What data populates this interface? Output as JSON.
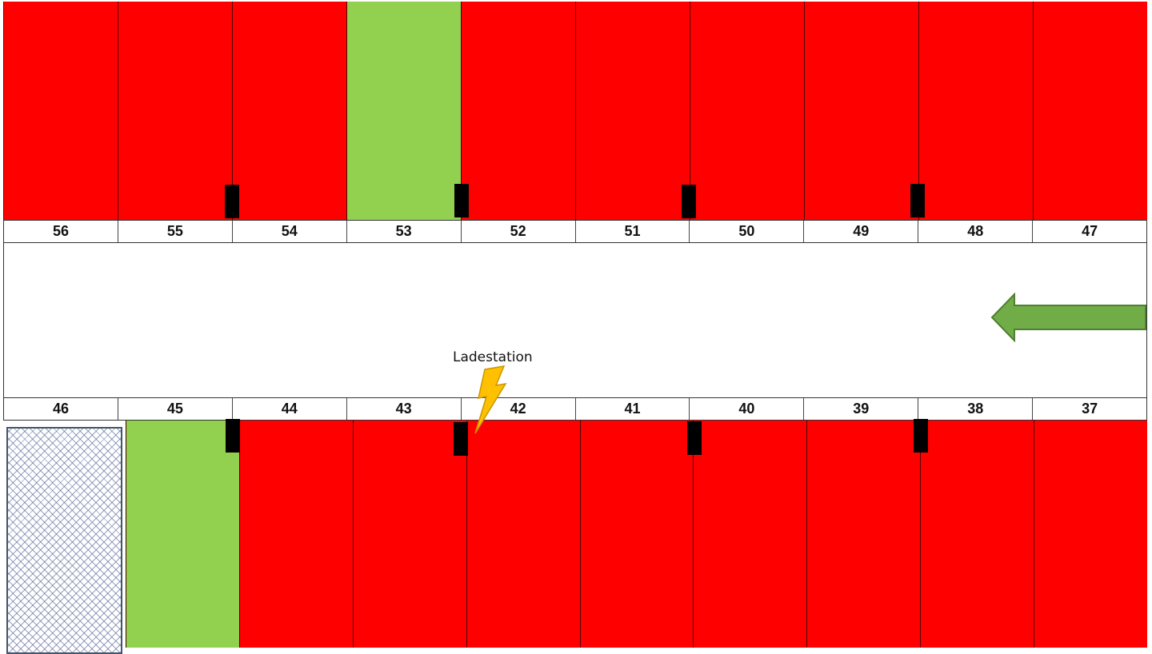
{
  "top_row": [
    {
      "number": "56",
      "status": "occupied"
    },
    {
      "number": "55",
      "status": "occupied"
    },
    {
      "number": "54",
      "status": "occupied"
    },
    {
      "number": "53",
      "status": "free"
    },
    {
      "number": "52",
      "status": "occupied"
    },
    {
      "number": "51",
      "status": "occupied"
    },
    {
      "number": "50",
      "status": "occupied"
    },
    {
      "number": "49",
      "status": "occupied"
    },
    {
      "number": "48",
      "status": "occupied"
    },
    {
      "number": "47",
      "status": "occupied"
    }
  ],
  "bottom_row": [
    {
      "number": "46",
      "status": "blocked"
    },
    {
      "number": "45",
      "status": "free"
    },
    {
      "number": "44",
      "status": "occupied"
    },
    {
      "number": "43",
      "status": "occupied"
    },
    {
      "number": "42",
      "status": "occupied"
    },
    {
      "number": "41",
      "status": "occupied"
    },
    {
      "number": "40",
      "status": "occupied"
    },
    {
      "number": "39",
      "status": "occupied"
    },
    {
      "number": "38",
      "status": "occupied"
    },
    {
      "number": "37",
      "status": "occupied"
    }
  ],
  "charging_station": {
    "label": "Ladestation"
  },
  "colors": {
    "occupied": "#ff0000",
    "free": "#92d050",
    "arrow": "#70ad47",
    "bolt": "#ffc000"
  },
  "direction": "left"
}
